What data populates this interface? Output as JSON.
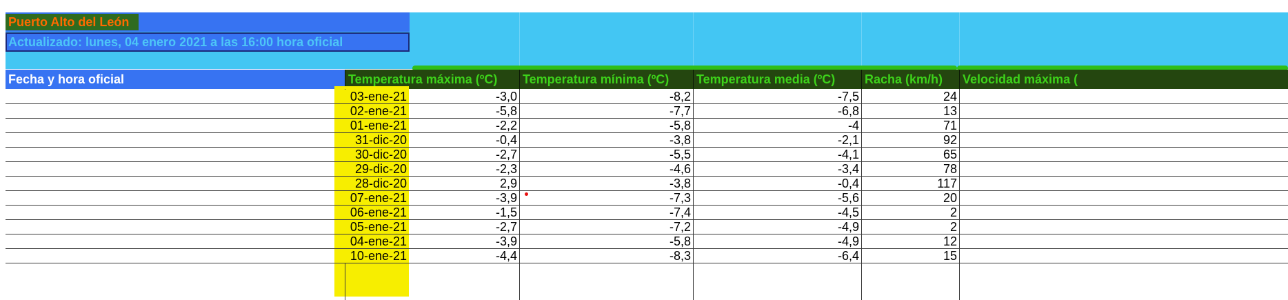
{
  "sheet": {
    "title": "Puerto Alto del León",
    "updated": "Actualizado: lunes, 04 enero 2021 a las 16:00 hora oficial"
  },
  "columns": [
    "Fecha y hora oficial",
    "Temperatura máxima (ºC)",
    "Temperatura mínima (ºC)",
    "Temperatura media (ºC)",
    "Racha (km/h)",
    "Velocidad máxima ("
  ],
  "rows": [
    {
      "date": "03-ene-21",
      "tmax": "-3,0",
      "tmin": "-8,2",
      "tmed": "-7,5",
      "racha": "24"
    },
    {
      "date": "02-ene-21",
      "tmax": "-5,8",
      "tmin": "-7,7",
      "tmed": "-6,8",
      "racha": "13"
    },
    {
      "date": "01-ene-21",
      "tmax": "-2,2",
      "tmin": "-5,8",
      "tmed": "-4",
      "racha": "71"
    },
    {
      "date": "31-dic-20",
      "tmax": "-0,4",
      "tmin": "-3,8",
      "tmed": "-2,1",
      "racha": "92"
    },
    {
      "date": "30-dic-20",
      "tmax": "-2,7",
      "tmin": "-5,5",
      "tmed": "-4,1",
      "racha": "65"
    },
    {
      "date": "29-dic-20",
      "tmax": "-2,3",
      "tmin": "-4,6",
      "tmed": "-3,4",
      "racha": "78"
    },
    {
      "date": "28-dic-20",
      "tmax": "2,9",
      "tmin": "-3,8",
      "tmed": "-0,4",
      "racha": "117"
    },
    {
      "date": "07-ene-21",
      "tmax": "-3,9",
      "tmin": "-7,3",
      "tmed": "-5,6",
      "racha": "20"
    },
    {
      "date": "06-ene-21",
      "tmax": "-1,5",
      "tmin": "-7,4",
      "tmed": "-4,5",
      "racha": "2"
    },
    {
      "date": "05-ene-21",
      "tmax": "-2,7",
      "tmin": "-7,2",
      "tmed": "-4,9",
      "racha": "2"
    },
    {
      "date": "04-ene-21",
      "tmax": "-3,9",
      "tmin": "-5,8",
      "tmed": "-4,9",
      "racha": "12"
    },
    {
      "date": "10-ene-21",
      "tmax": "-4,4",
      "tmin": "-8,3",
      "tmed": "-6,4",
      "racha": "15"
    }
  ],
  "colors": {
    "header_blue": "#3773f2",
    "band_cyan": "#43c6f3",
    "header_green_bg": "#24460f",
    "header_green_text": "#3dd21a",
    "title_orange": "#ff6a00",
    "date_yellow": "#f7ee00"
  }
}
